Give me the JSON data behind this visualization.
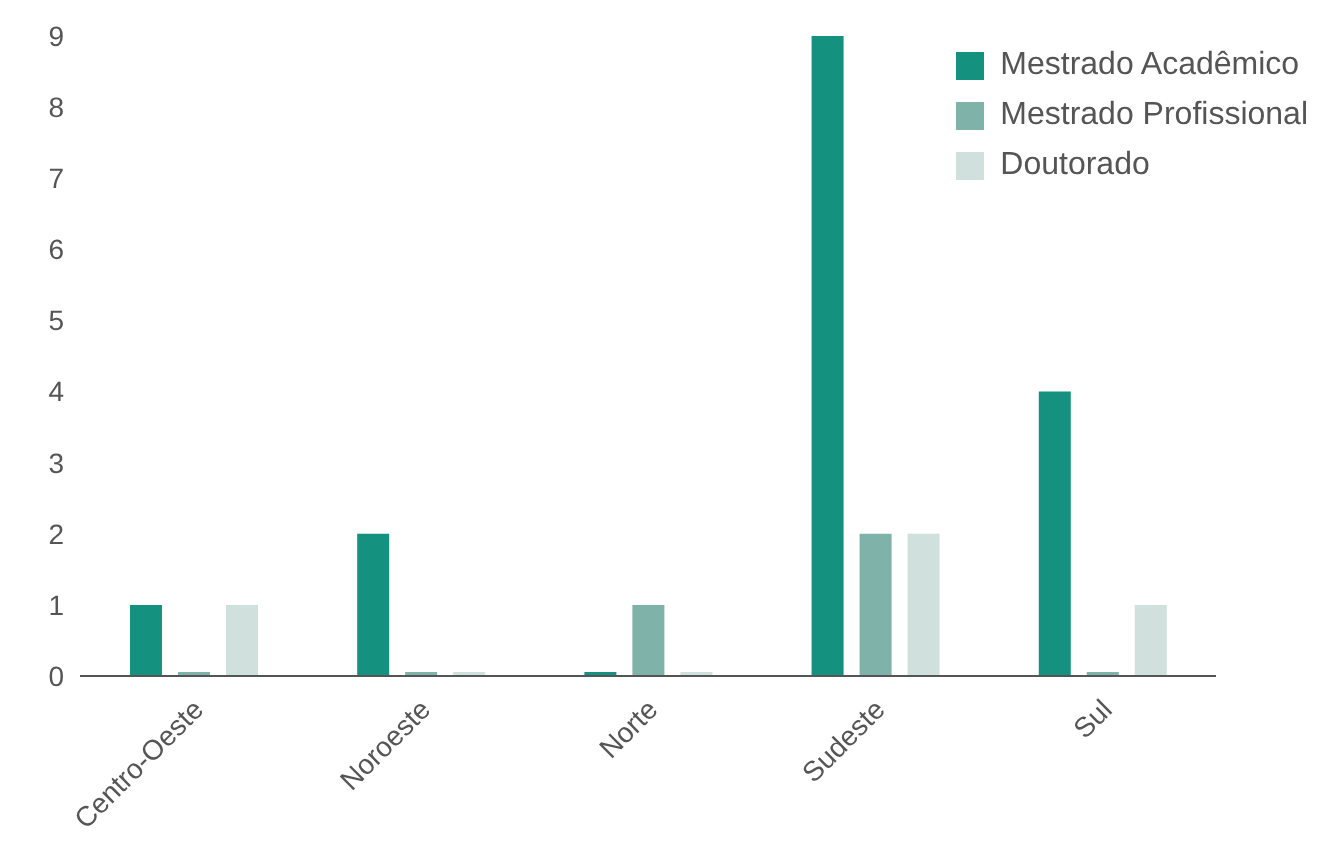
{
  "chart_data": {
    "type": "bar",
    "categories": [
      "Centro-Oeste",
      "Noroeste",
      "Norte",
      "Sudeste",
      "Sul"
    ],
    "series": [
      {
        "name": "Mestrado Acadêmico",
        "color": "#14927f",
        "values": [
          1,
          2,
          0,
          9,
          4
        ]
      },
      {
        "name": "Mestrado Profissional",
        "color": "#7fb2a8",
        "values": [
          0,
          0,
          1,
          2,
          0
        ]
      },
      {
        "name": "Doutorado",
        "color": "#d0e0dc",
        "values": [
          1,
          0,
          0,
          2,
          1
        ]
      }
    ],
    "ylim": [
      0,
      9
    ],
    "yticks": [
      0,
      1,
      2,
      3,
      4,
      5,
      6,
      7,
      8,
      9
    ],
    "grid": false,
    "legend": "top right"
  }
}
